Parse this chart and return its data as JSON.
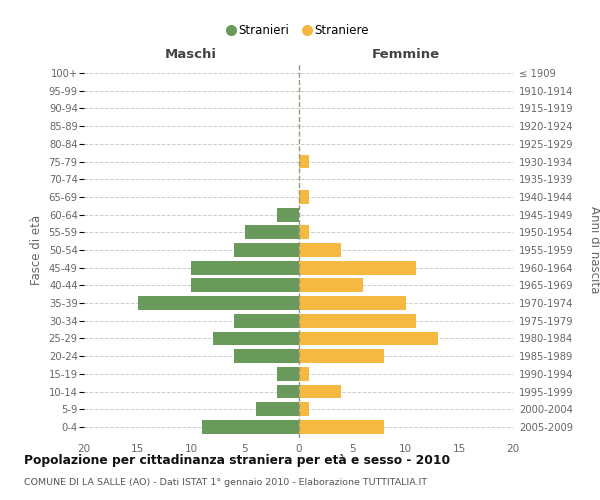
{
  "age_groups": [
    "0-4",
    "5-9",
    "10-14",
    "15-19",
    "20-24",
    "25-29",
    "30-34",
    "35-39",
    "40-44",
    "45-49",
    "50-54",
    "55-59",
    "60-64",
    "65-69",
    "70-74",
    "75-79",
    "80-84",
    "85-89",
    "90-94",
    "95-99",
    "100+"
  ],
  "birth_years": [
    "2005-2009",
    "2000-2004",
    "1995-1999",
    "1990-1994",
    "1985-1989",
    "1980-1984",
    "1975-1979",
    "1970-1974",
    "1965-1969",
    "1960-1964",
    "1955-1959",
    "1950-1954",
    "1945-1949",
    "1940-1944",
    "1935-1939",
    "1930-1934",
    "1925-1929",
    "1920-1924",
    "1915-1919",
    "1910-1914",
    "≤ 1909"
  ],
  "stranieri": [
    9,
    4,
    2,
    2,
    6,
    8,
    6,
    15,
    10,
    10,
    6,
    5,
    2,
    0,
    0,
    0,
    0,
    0,
    0,
    0,
    0
  ],
  "straniere": [
    8,
    1,
    4,
    1,
    8,
    13,
    11,
    10,
    6,
    11,
    4,
    1,
    0,
    1,
    0,
    1,
    0,
    0,
    0,
    0,
    0
  ],
  "color_stranieri": "#6a9a5b",
  "color_straniere": "#f5b942",
  "title": "Popolazione per cittadinanza straniera per età e sesso - 2010",
  "subtitle": "COMUNE DI LA SALLE (AO) - Dati ISTAT 1° gennaio 2010 - Elaborazione TUTTITALIA.IT",
  "ylabel_left": "Fasce di età",
  "ylabel_right": "Anni di nascita",
  "xlabel_left": "Maschi",
  "xlabel_right": "Femmine",
  "xlim": 20,
  "legend_stranieri": "Stranieri",
  "legend_straniere": "Straniere",
  "background_color": "#ffffff",
  "grid_color": "#cccccc"
}
